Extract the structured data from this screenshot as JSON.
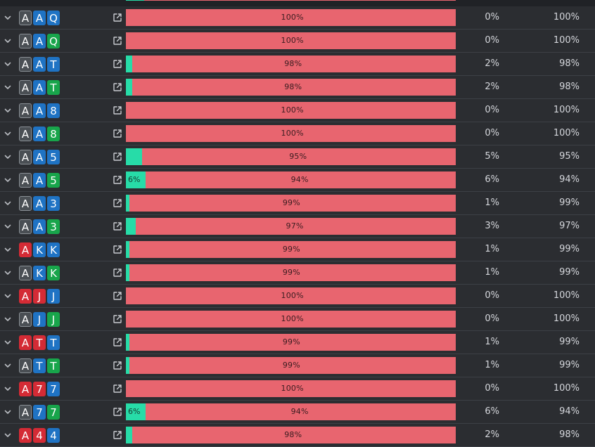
{
  "colors": {
    "background": "#2b2d31",
    "equity_bar": "#27dca8",
    "loss_bar": "#e8656f",
    "suit_spade": "#4a4f54",
    "suit_heart": "#d42b35",
    "suit_diamond": "#1f73c4",
    "suit_club": "#18a54b"
  },
  "rows": [
    {
      "cards": [
        {
          "rank": "A",
          "suit": "s"
        },
        {
          "rank": "A",
          "suit": "d"
        },
        {
          "rank": "Q",
          "suit": "d"
        }
      ],
      "equity": 0,
      "equity_label": "",
      "bar_label": "100%",
      "col1": "0%",
      "col2": "100%"
    },
    {
      "cards": [
        {
          "rank": "A",
          "suit": "s"
        },
        {
          "rank": "A",
          "suit": "d"
        },
        {
          "rank": "Q",
          "suit": "c"
        }
      ],
      "equity": 0,
      "equity_label": "",
      "bar_label": "100%",
      "col1": "0%",
      "col2": "100%"
    },
    {
      "cards": [
        {
          "rank": "A",
          "suit": "s"
        },
        {
          "rank": "A",
          "suit": "d"
        },
        {
          "rank": "T",
          "suit": "d"
        }
      ],
      "equity": 2,
      "equity_label": "",
      "bar_label": "98%",
      "col1": "2%",
      "col2": "98%"
    },
    {
      "cards": [
        {
          "rank": "A",
          "suit": "s"
        },
        {
          "rank": "A",
          "suit": "d"
        },
        {
          "rank": "T",
          "suit": "c"
        }
      ],
      "equity": 2,
      "equity_label": "",
      "bar_label": "98%",
      "col1": "2%",
      "col2": "98%"
    },
    {
      "cards": [
        {
          "rank": "A",
          "suit": "s"
        },
        {
          "rank": "A",
          "suit": "d"
        },
        {
          "rank": "8",
          "suit": "d"
        }
      ],
      "equity": 0,
      "equity_label": "",
      "bar_label": "100%",
      "col1": "0%",
      "col2": "100%"
    },
    {
      "cards": [
        {
          "rank": "A",
          "suit": "s"
        },
        {
          "rank": "A",
          "suit": "d"
        },
        {
          "rank": "8",
          "suit": "c"
        }
      ],
      "equity": 0,
      "equity_label": "",
      "bar_label": "100%",
      "col1": "0%",
      "col2": "100%"
    },
    {
      "cards": [
        {
          "rank": "A",
          "suit": "s"
        },
        {
          "rank": "A",
          "suit": "d"
        },
        {
          "rank": "5",
          "suit": "d"
        }
      ],
      "equity": 5,
      "equity_label": "",
      "bar_label": "95%",
      "col1": "5%",
      "col2": "95%"
    },
    {
      "cards": [
        {
          "rank": "A",
          "suit": "s"
        },
        {
          "rank": "A",
          "suit": "d"
        },
        {
          "rank": "5",
          "suit": "c"
        }
      ],
      "equity": 6,
      "equity_label": "6%",
      "bar_label": "94%",
      "col1": "6%",
      "col2": "94%"
    },
    {
      "cards": [
        {
          "rank": "A",
          "suit": "s"
        },
        {
          "rank": "A",
          "suit": "d"
        },
        {
          "rank": "3",
          "suit": "d"
        }
      ],
      "equity": 1,
      "equity_label": "",
      "bar_label": "99%",
      "col1": "1%",
      "col2": "99%"
    },
    {
      "cards": [
        {
          "rank": "A",
          "suit": "s"
        },
        {
          "rank": "A",
          "suit": "d"
        },
        {
          "rank": "3",
          "suit": "c"
        }
      ],
      "equity": 3,
      "equity_label": "",
      "bar_label": "97%",
      "col1": "3%",
      "col2": "97%"
    },
    {
      "cards": [
        {
          "rank": "A",
          "suit": "h"
        },
        {
          "rank": "K",
          "suit": "d"
        },
        {
          "rank": "K",
          "suit": "d"
        }
      ],
      "equity": 1,
      "equity_label": "",
      "bar_label": "99%",
      "col1": "1%",
      "col2": "99%"
    },
    {
      "cards": [
        {
          "rank": "A",
          "suit": "s"
        },
        {
          "rank": "K",
          "suit": "d"
        },
        {
          "rank": "K",
          "suit": "c"
        }
      ],
      "equity": 1,
      "equity_label": "",
      "bar_label": "99%",
      "col1": "1%",
      "col2": "99%"
    },
    {
      "cards": [
        {
          "rank": "A",
          "suit": "h"
        },
        {
          "rank": "J",
          "suit": "h"
        },
        {
          "rank": "J",
          "suit": "d"
        }
      ],
      "equity": 0,
      "equity_label": "",
      "bar_label": "100%",
      "col1": "0%",
      "col2": "100%"
    },
    {
      "cards": [
        {
          "rank": "A",
          "suit": "s"
        },
        {
          "rank": "J",
          "suit": "d"
        },
        {
          "rank": "J",
          "suit": "c"
        }
      ],
      "equity": 0,
      "equity_label": "",
      "bar_label": "100%",
      "col1": "0%",
      "col2": "100%"
    },
    {
      "cards": [
        {
          "rank": "A",
          "suit": "h"
        },
        {
          "rank": "T",
          "suit": "h"
        },
        {
          "rank": "T",
          "suit": "d"
        }
      ],
      "equity": 1,
      "equity_label": "",
      "bar_label": "99%",
      "col1": "1%",
      "col2": "99%"
    },
    {
      "cards": [
        {
          "rank": "A",
          "suit": "s"
        },
        {
          "rank": "T",
          "suit": "d"
        },
        {
          "rank": "T",
          "suit": "c"
        }
      ],
      "equity": 1,
      "equity_label": "",
      "bar_label": "99%",
      "col1": "1%",
      "col2": "99%"
    },
    {
      "cards": [
        {
          "rank": "A",
          "suit": "h"
        },
        {
          "rank": "7",
          "suit": "h"
        },
        {
          "rank": "7",
          "suit": "d"
        }
      ],
      "equity": 0,
      "equity_label": "",
      "bar_label": "100%",
      "col1": "0%",
      "col2": "100%"
    },
    {
      "cards": [
        {
          "rank": "A",
          "suit": "s"
        },
        {
          "rank": "7",
          "suit": "d"
        },
        {
          "rank": "7",
          "suit": "c"
        }
      ],
      "equity": 6,
      "equity_label": "6%",
      "bar_label": "94%",
      "col1": "6%",
      "col2": "94%"
    },
    {
      "cards": [
        {
          "rank": "A",
          "suit": "h"
        },
        {
          "rank": "4",
          "suit": "h"
        },
        {
          "rank": "4",
          "suit": "d"
        }
      ],
      "equity": 2,
      "equity_label": "",
      "bar_label": "98%",
      "col1": "2%",
      "col2": "98%"
    }
  ]
}
